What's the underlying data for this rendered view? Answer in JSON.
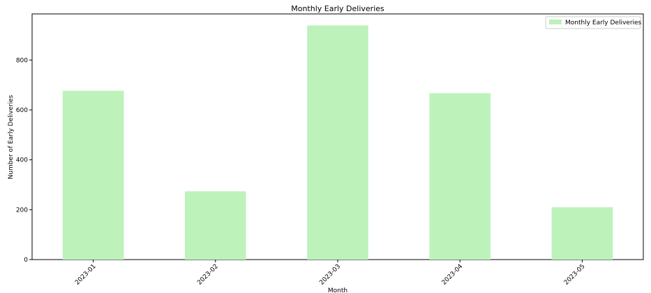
{
  "chart_data": {
    "type": "bar",
    "title": "Monthly Early Deliveries",
    "xlabel": "Month",
    "ylabel": "Number of Early Deliveries",
    "categories": [
      "2023-01",
      "2023-02",
      "2023-03",
      "2023-04",
      "2023-05"
    ],
    "series": [
      {
        "name": "Monthly Early Deliveries",
        "values": [
          677,
          274,
          939,
          667,
          210
        ],
        "color": "#bdf2bb"
      }
    ],
    "ylim": [
      0,
      985
    ],
    "yticks": [
      0,
      200,
      400,
      600,
      800
    ],
    "grid": false,
    "legend_position": "top-right",
    "x_tick_rotation": 45
  }
}
